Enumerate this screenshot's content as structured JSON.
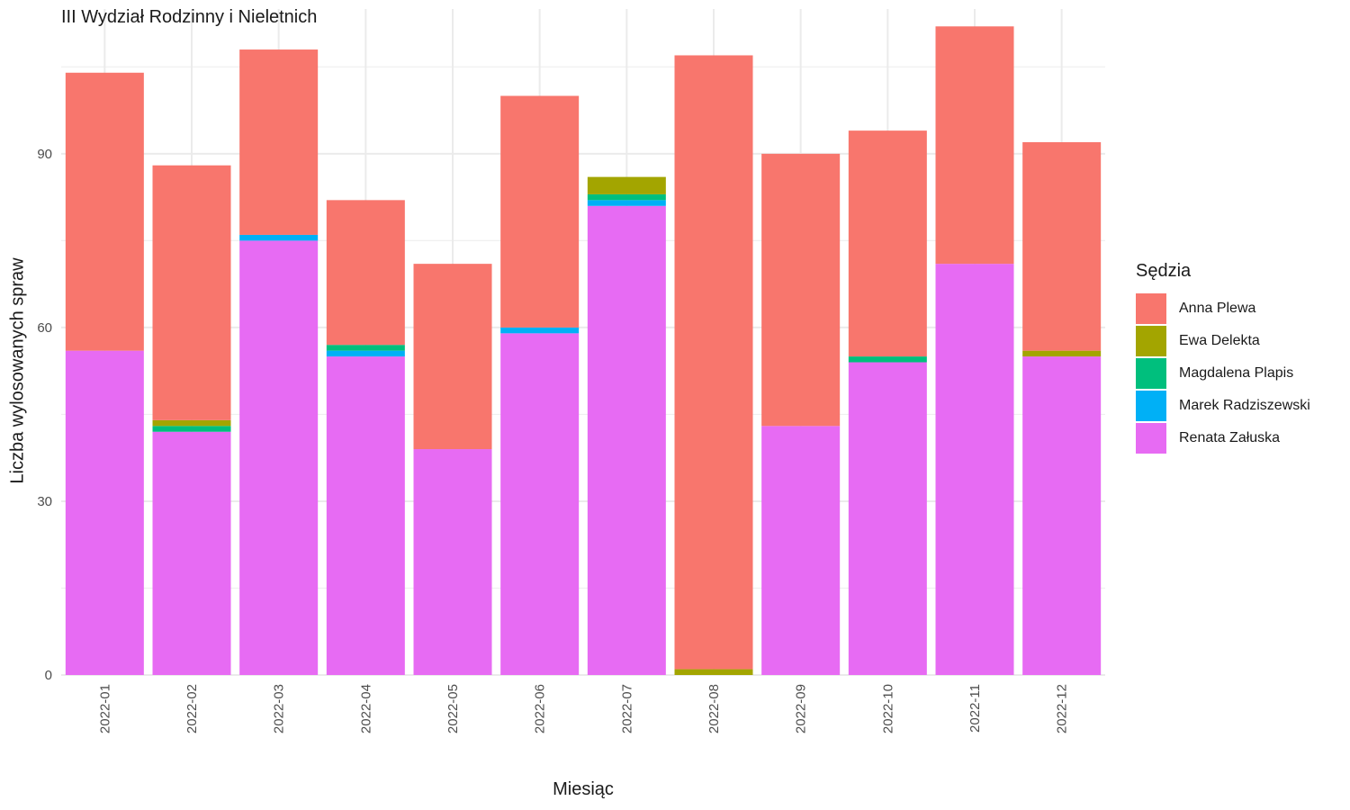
{
  "chart_data": {
    "type": "bar",
    "stacked": true,
    "title": "III Wydział Rodzinny i Nieletnich",
    "xlabel": "Miesiąc",
    "ylabel": "Liczba wylosowanych spraw",
    "legend_title": "Sędzia",
    "legend_position": "right",
    "grid": true,
    "ylim": [
      0,
      115
    ],
    "yticks": [
      0,
      30,
      60,
      90
    ],
    "categories": [
      "2022-01",
      "2022-02",
      "2022-03",
      "2022-04",
      "2022-05",
      "2022-06",
      "2022-07",
      "2022-08",
      "2022-09",
      "2022-10",
      "2022-11",
      "2022-12"
    ],
    "series": [
      {
        "name": "Renata Załuska",
        "color": "#E76BF3",
        "values": [
          56,
          42,
          75,
          55,
          39,
          59,
          81,
          0,
          43,
          54,
          71,
          55
        ]
      },
      {
        "name": "Marek Radziszewski",
        "color": "#00B0F6",
        "values": [
          0,
          0,
          1,
          1,
          0,
          1,
          1,
          0,
          0,
          0,
          0,
          0
        ]
      },
      {
        "name": "Magdalena Plapis",
        "color": "#00BF7D",
        "values": [
          0,
          1,
          0,
          1,
          0,
          0,
          1,
          0,
          0,
          1,
          0,
          0
        ]
      },
      {
        "name": "Ewa Delekta",
        "color": "#A3A500",
        "values": [
          0,
          1,
          0,
          0,
          0,
          0,
          3,
          1,
          0,
          0,
          0,
          1
        ]
      },
      {
        "name": "Anna Plewa",
        "color": "#F8766D",
        "values": [
          48,
          44,
          32,
          25,
          32,
          40,
          0,
          106,
          47,
          39,
          41,
          36
        ]
      }
    ],
    "legend_order": [
      "Anna Plewa",
      "Ewa Delekta",
      "Magdalena Plapis",
      "Marek Radziszewski",
      "Renata Załuska"
    ]
  }
}
